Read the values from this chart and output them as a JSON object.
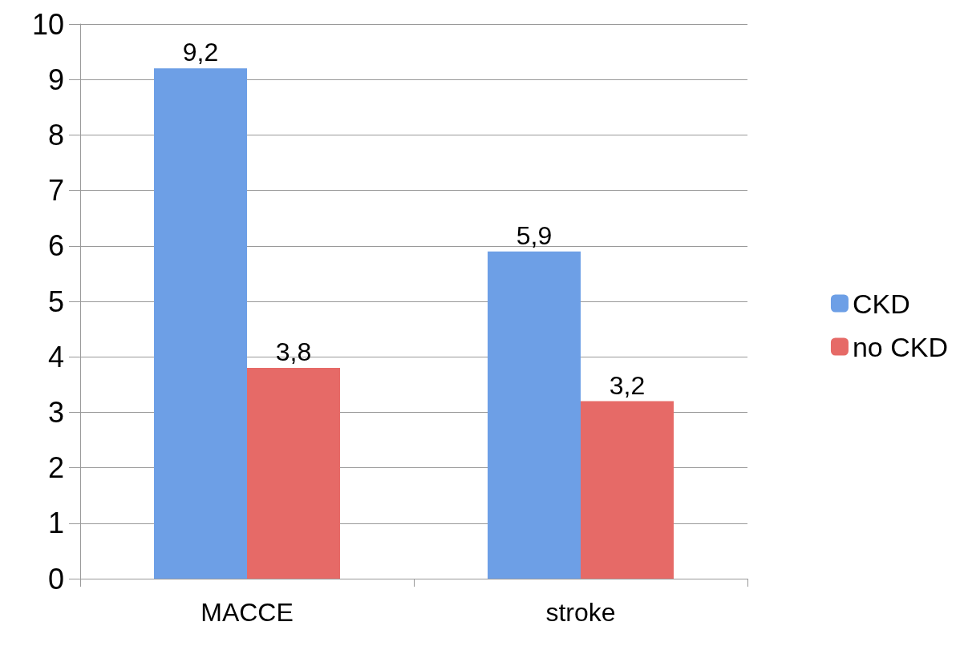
{
  "chart_data": {
    "type": "bar",
    "categories": [
      "MACCE",
      "stroke"
    ],
    "series": [
      {
        "name": "CKD",
        "color": "#6d9fe6",
        "values": [
          9.2,
          5.9
        ],
        "value_labels": [
          "9,2",
          "5,9"
        ]
      },
      {
        "name": "no CKD",
        "color": "#e66a67",
        "values": [
          3.8,
          3.2
        ],
        "value_labels": [
          "3,8",
          "3,2"
        ]
      }
    ],
    "ylim": [
      0,
      10
    ],
    "yticks": [
      0,
      1,
      2,
      3,
      4,
      5,
      6,
      7,
      8,
      9,
      10
    ],
    "grid": "y",
    "legend": "right"
  }
}
